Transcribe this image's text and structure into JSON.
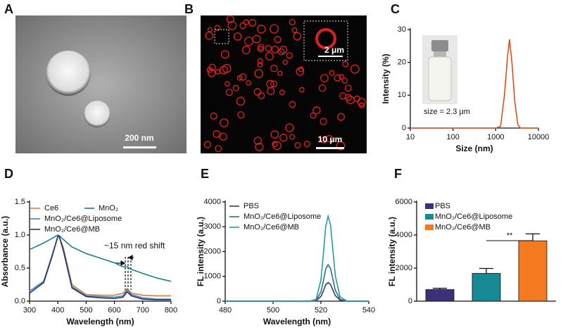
{
  "images": [
    {
      "label": "A",
      "scale_bar": "200 nm"
    },
    {
      "label": "B",
      "scale_bar": "10 μm",
      "inset_scale_bar": "2 μm"
    }
  ],
  "chart_data": [
    {
      "type": "line",
      "panel": "C",
      "xlabel": "Size (nm)",
      "ylabel": "Intensity (%)",
      "annotation": "size = 2.3 μm",
      "log_x": true,
      "xlim": [
        10,
        10000
      ],
      "xticks": [
        10,
        100,
        1000,
        10000
      ],
      "ylim": [
        0,
        30
      ],
      "yticks": [
        0,
        10,
        20,
        30
      ],
      "color": "#e0501c",
      "x": [
        10,
        1000,
        1300,
        1600,
        1900,
        2100,
        2400,
        2800,
        3300,
        3800,
        10000
      ],
      "values": [
        0,
        0,
        0.5,
        10,
        22,
        27,
        20,
        8,
        1,
        0,
        0
      ]
    },
    {
      "type": "line",
      "panel": "D",
      "xlabel": "Wavelength (nm)",
      "ylabel": "Absorbance (a.u.)",
      "annotation": "~15 nm red shift",
      "xlim": [
        300,
        800
      ],
      "xticks": [
        300,
        400,
        500,
        600,
        700,
        800
      ],
      "ylim": [
        0,
        1.5
      ],
      "yticks": [
        {
          "value": 0,
          "label": "0.0"
        },
        0.5,
        {
          "value": 1,
          "label": "1.0"
        },
        1.5
      ],
      "x": [
        300,
        350,
        380,
        400,
        405,
        420,
        450,
        500,
        550,
        600,
        630,
        645,
        660,
        700,
        750,
        800
      ],
      "series": [
        {
          "name": "Ce6",
          "color": "#e07b39",
          "values": [
            0.15,
            0.3,
            0.7,
            0.97,
            0.98,
            0.8,
            0.25,
            0.1,
            0.09,
            0.09,
            0.12,
            0.19,
            0.12,
            0.09,
            0.08,
            0.08
          ]
        },
        {
          "name": "MnO₂",
          "color": "#1a7f8e",
          "values": [
            0.78,
            0.88,
            0.95,
            1.0,
            0.99,
            0.93,
            0.82,
            0.72,
            0.65,
            0.58,
            0.52,
            0.52,
            0.48,
            0.42,
            0.35,
            0.3
          ]
        },
        {
          "name": "MnO₂/Ce6@Liposome",
          "color": "#2f8fb5",
          "values": [
            0.15,
            0.3,
            0.7,
            0.98,
            0.97,
            0.78,
            0.22,
            0.08,
            0.07,
            0.06,
            0.08,
            0.17,
            0.1,
            0.05,
            0.03,
            0.03
          ]
        },
        {
          "name": "MnO₂/Ce6@MB",
          "color": "#34306e",
          "values": [
            0.12,
            0.28,
            0.68,
            0.98,
            0.98,
            0.75,
            0.2,
            0.07,
            0.05,
            0.04,
            0.06,
            0.14,
            0.08,
            0.03,
            0.02,
            0.02
          ]
        }
      ]
    },
    {
      "type": "line",
      "panel": "E",
      "xlabel": "Wavelength (nm)",
      "ylabel": "FL intensity (a.u.)",
      "xlim": [
        480,
        540
      ],
      "xticks": [
        480,
        500,
        520,
        540
      ],
      "ylim": [
        0,
        4000
      ],
      "yticks": [
        0,
        1000,
        2000,
        3000,
        4000
      ],
      "x": [
        480,
        515,
        518,
        520,
        521,
        522,
        523,
        524,
        525,
        526,
        528,
        531,
        540
      ],
      "series": [
        {
          "name": "PBS",
          "color": "#3a3a5a",
          "values": [
            0,
            0,
            15,
            190,
            410,
            660,
            750,
            675,
            450,
            225,
            40,
            0,
            0
          ]
        },
        {
          "name": "MnO₂/Ce6@Liposome",
          "color": "#2a6f8e",
          "values": [
            0,
            0,
            30,
            370,
            810,
            1290,
            1470,
            1320,
            880,
            440,
            75,
            0,
            0
          ]
        },
        {
          "name": "MnO₂/Ce6@MB",
          "color": "#2a9aa0",
          "values": [
            0,
            0,
            70,
            860,
            1880,
            3010,
            3420,
            3080,
            2050,
            1030,
            170,
            0,
            0
          ]
        }
      ]
    },
    {
      "type": "bar",
      "panel": "F",
      "ylabel": "FL intensity (a.u.)",
      "annotation": "**",
      "ylim": [
        0,
        6000
      ],
      "yticks": [
        0,
        2000,
        4000,
        6000
      ],
      "series": [
        {
          "name": "PBS",
          "color": "#3d2f7a",
          "values": [
            700
          ],
          "errors": [
            80
          ]
        },
        {
          "name": "MnO₂/Ce6@Liposome",
          "color": "#168a94",
          "values": [
            1680
          ],
          "errors": [
            300
          ]
        },
        {
          "name": "MnO₂/Ce6@MB",
          "color": "#f47a20",
          "values": [
            3650
          ],
          "errors": [
            420
          ]
        }
      ]
    }
  ]
}
